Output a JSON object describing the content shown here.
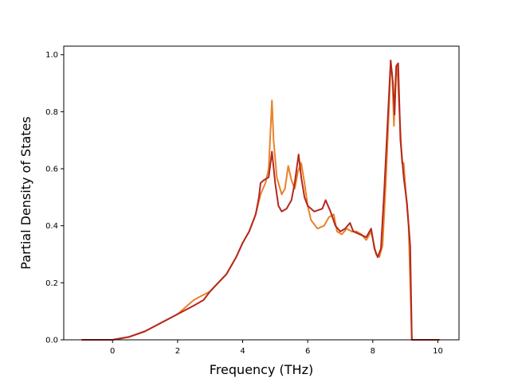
{
  "chart_data": {
    "type": "line",
    "title": "",
    "xlabel": "Frequency (THz)",
    "ylabel": "Partial Density of States",
    "xlim": [
      -1.5,
      10.65
    ],
    "ylim": [
      0.0,
      1.03
    ],
    "xticks": [
      0,
      2,
      4,
      6,
      8,
      10
    ],
    "yticks": [
      0.0,
      0.2,
      0.4,
      0.6,
      0.8,
      1.0
    ],
    "xtick_labels": [
      "0",
      "2",
      "4",
      "6",
      "8",
      "10"
    ],
    "ytick_labels": [
      "0.0",
      "0.2",
      "0.4",
      "0.6",
      "0.8",
      "1.0"
    ],
    "grid": false,
    "legend": null,
    "series": [
      {
        "color": "#e8822a",
        "points": [
          [
            -0.95,
            0.0
          ],
          [
            0.0,
            0.0
          ],
          [
            0.5,
            0.01
          ],
          [
            1.0,
            0.03
          ],
          [
            1.5,
            0.06
          ],
          [
            2.0,
            0.09
          ],
          [
            2.5,
            0.14
          ],
          [
            3.0,
            0.17
          ],
          [
            3.5,
            0.23
          ],
          [
            3.8,
            0.29
          ],
          [
            4.0,
            0.34
          ],
          [
            4.2,
            0.38
          ],
          [
            4.4,
            0.44
          ],
          [
            4.55,
            0.51
          ],
          [
            4.7,
            0.55
          ],
          [
            4.8,
            0.6
          ],
          [
            4.9,
            0.84
          ],
          [
            4.95,
            0.7
          ],
          [
            5.05,
            0.57
          ],
          [
            5.2,
            0.51
          ],
          [
            5.3,
            0.53
          ],
          [
            5.4,
            0.61
          ],
          [
            5.5,
            0.56
          ],
          [
            5.6,
            0.53
          ],
          [
            5.7,
            0.59
          ],
          [
            5.8,
            0.62
          ],
          [
            5.9,
            0.55
          ],
          [
            6.0,
            0.47
          ],
          [
            6.1,
            0.42
          ],
          [
            6.3,
            0.39
          ],
          [
            6.5,
            0.4
          ],
          [
            6.65,
            0.43
          ],
          [
            6.8,
            0.44
          ],
          [
            6.9,
            0.38
          ],
          [
            7.05,
            0.37
          ],
          [
            7.2,
            0.39
          ],
          [
            7.35,
            0.38
          ],
          [
            7.5,
            0.38
          ],
          [
            7.65,
            0.37
          ],
          [
            7.8,
            0.35
          ],
          [
            7.95,
            0.38
          ],
          [
            8.1,
            0.3
          ],
          [
            8.2,
            0.29
          ],
          [
            8.3,
            0.33
          ],
          [
            8.4,
            0.55
          ],
          [
            8.5,
            0.82
          ],
          [
            8.55,
            0.97
          ],
          [
            8.6,
            0.92
          ],
          [
            8.65,
            0.75
          ],
          [
            8.7,
            0.92
          ],
          [
            8.75,
            0.96
          ],
          [
            8.8,
            0.84
          ],
          [
            8.9,
            0.62
          ],
          [
            8.95,
            0.62
          ],
          [
            9.0,
            0.54
          ],
          [
            9.1,
            0.4
          ],
          [
            9.2,
            0.0
          ],
          [
            9.5,
            0.0
          ],
          [
            10.05,
            0.0
          ]
        ]
      },
      {
        "color": "#b5281e",
        "points": [
          [
            -0.95,
            0.0
          ],
          [
            0.0,
            0.0
          ],
          [
            0.5,
            0.01
          ],
          [
            1.0,
            0.03
          ],
          [
            1.5,
            0.06
          ],
          [
            2.0,
            0.09
          ],
          [
            2.5,
            0.12
          ],
          [
            2.8,
            0.14
          ],
          [
            3.0,
            0.17
          ],
          [
            3.5,
            0.23
          ],
          [
            3.8,
            0.29
          ],
          [
            4.0,
            0.34
          ],
          [
            4.2,
            0.38
          ],
          [
            4.4,
            0.44
          ],
          [
            4.5,
            0.5
          ],
          [
            4.55,
            0.55
          ],
          [
            4.65,
            0.56
          ],
          [
            4.8,
            0.57
          ],
          [
            4.9,
            0.66
          ],
          [
            5.0,
            0.55
          ],
          [
            5.1,
            0.47
          ],
          [
            5.2,
            0.45
          ],
          [
            5.35,
            0.46
          ],
          [
            5.5,
            0.49
          ],
          [
            5.6,
            0.55
          ],
          [
            5.72,
            0.65
          ],
          [
            5.8,
            0.57
          ],
          [
            5.9,
            0.5
          ],
          [
            6.0,
            0.47
          ],
          [
            6.2,
            0.45
          ],
          [
            6.45,
            0.46
          ],
          [
            6.55,
            0.49
          ],
          [
            6.7,
            0.45
          ],
          [
            6.85,
            0.4
          ],
          [
            7.0,
            0.38
          ],
          [
            7.15,
            0.39
          ],
          [
            7.3,
            0.41
          ],
          [
            7.4,
            0.38
          ],
          [
            7.6,
            0.37
          ],
          [
            7.8,
            0.36
          ],
          [
            7.95,
            0.39
          ],
          [
            8.05,
            0.32
          ],
          [
            8.15,
            0.29
          ],
          [
            8.25,
            0.32
          ],
          [
            8.35,
            0.52
          ],
          [
            8.45,
            0.75
          ],
          [
            8.55,
            0.98
          ],
          [
            8.62,
            0.9
          ],
          [
            8.67,
            0.79
          ],
          [
            8.72,
            0.96
          ],
          [
            8.78,
            0.97
          ],
          [
            8.85,
            0.7
          ],
          [
            8.95,
            0.57
          ],
          [
            9.05,
            0.48
          ],
          [
            9.15,
            0.33
          ],
          [
            9.2,
            0.0
          ],
          [
            9.5,
            0.0
          ],
          [
            10.05,
            0.0
          ]
        ]
      }
    ]
  }
}
